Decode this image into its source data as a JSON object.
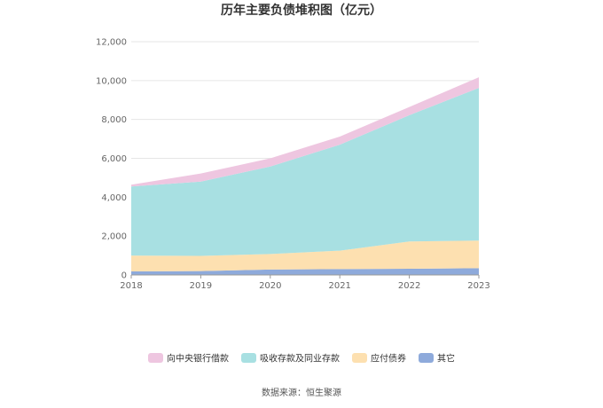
{
  "chart_data": {
    "type": "area",
    "stacked": true,
    "title": "历年主要负债堆积图（亿元）",
    "x": [
      "2018",
      "2019",
      "2020",
      "2021",
      "2022",
      "2023"
    ],
    "yticks": [
      "0",
      "2,000",
      "4,000",
      "6,000",
      "8,000",
      "10,000",
      "12,000"
    ],
    "ylim": [
      0,
      12000
    ],
    "grid": true,
    "legend_position": "bottom",
    "series": [
      {
        "name": "其它",
        "color": "#8eaadb",
        "values": [
          180,
          200,
          280,
          300,
          320,
          350
        ]
      },
      {
        "name": "应付债券",
        "color": "#fde0b0",
        "values": [
          820,
          780,
          800,
          950,
          1400,
          1420
        ]
      },
      {
        "name": "吸收存款及同业存款",
        "color": "#a8e0e2",
        "values": [
          3550,
          3820,
          4500,
          5450,
          6500,
          7850
        ]
      },
      {
        "name": "向中央银行借款",
        "color": "#eec6e0",
        "values": [
          90,
          420,
          420,
          420,
          420,
          550
        ]
      }
    ],
    "legend_order": [
      3,
      2,
      1,
      0
    ],
    "source": "数据来源：恒生聚源"
  }
}
